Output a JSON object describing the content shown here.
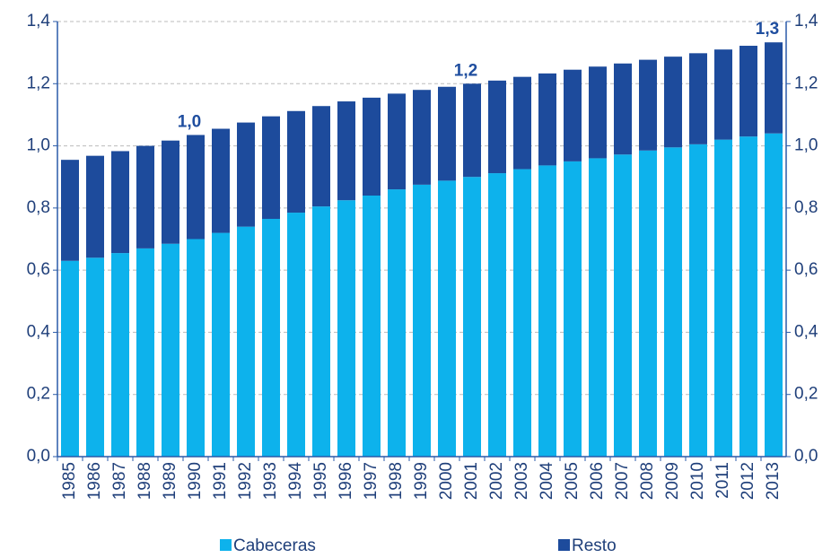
{
  "chart_data": {
    "type": "stacked-bar",
    "categories": [
      "1985",
      "1986",
      "1987",
      "1988",
      "1989",
      "1990",
      "1991",
      "1992",
      "1993",
      "1994",
      "1995",
      "1996",
      "1997",
      "1998",
      "1999",
      "2000",
      "2001",
      "2002",
      "2003",
      "2004",
      "2005",
      "2006",
      "2007",
      "2008",
      "2009",
      "2010",
      "2011",
      "2012",
      "2013"
    ],
    "series": [
      {
        "name": "Cabeceras",
        "color": "#0db2ec",
        "values": [
          0.63,
          0.64,
          0.655,
          0.67,
          0.685,
          0.7,
          0.72,
          0.74,
          0.765,
          0.785,
          0.805,
          0.825,
          0.84,
          0.86,
          0.875,
          0.888,
          0.9,
          0.912,
          0.925,
          0.937,
          0.95,
          0.96,
          0.972,
          0.985,
          0.995,
          1.005,
          1.02,
          1.03,
          1.04
        ]
      },
      {
        "name": "Resto",
        "color": "#1d4b9c",
        "values": [
          0.325,
          0.328,
          0.328,
          0.33,
          0.332,
          0.335,
          0.335,
          0.335,
          0.33,
          0.327,
          0.323,
          0.318,
          0.315,
          0.308,
          0.305,
          0.302,
          0.3,
          0.298,
          0.297,
          0.296,
          0.295,
          0.295,
          0.293,
          0.292,
          0.292,
          0.293,
          0.29,
          0.292,
          0.293
        ]
      }
    ],
    "annotations": [
      {
        "category": "1990",
        "value": 1.035,
        "label": "1,0"
      },
      {
        "category": "2001",
        "value": 1.2,
        "label": "1,2"
      },
      {
        "category": "2013",
        "value": 1.333,
        "label": "1,3"
      }
    ],
    "ylim": [
      0,
      1.4
    ],
    "yticks": [
      {
        "value": 0,
        "label": "0,0"
      },
      {
        "value": 0.2,
        "label": "0,2"
      },
      {
        "value": 0.4,
        "label": "0,4"
      },
      {
        "value": 0.6,
        "label": "0,6"
      },
      {
        "value": 0.8,
        "label": "0,8"
      },
      {
        "value": 1.0,
        "label": "1,0"
      },
      {
        "value": 1.2,
        "label": "1,2"
      },
      {
        "value": 1.4,
        "label": "1,4"
      }
    ],
    "y2lim": [
      0,
      1.4
    ],
    "y2ticks": [
      {
        "value": 0,
        "label": "0,0"
      },
      {
        "value": 0.2,
        "label": "0,2"
      },
      {
        "value": 0.4,
        "label": "0,4"
      },
      {
        "value": 0.6,
        "label": "0,6"
      },
      {
        "value": 0.8,
        "label": "0,8"
      },
      {
        "value": 1.0,
        "label": "1,0"
      },
      {
        "value": 1.2,
        "label": "1,2"
      },
      {
        "value": 1.4,
        "label": "1,4"
      }
    ],
    "grid": true
  }
}
